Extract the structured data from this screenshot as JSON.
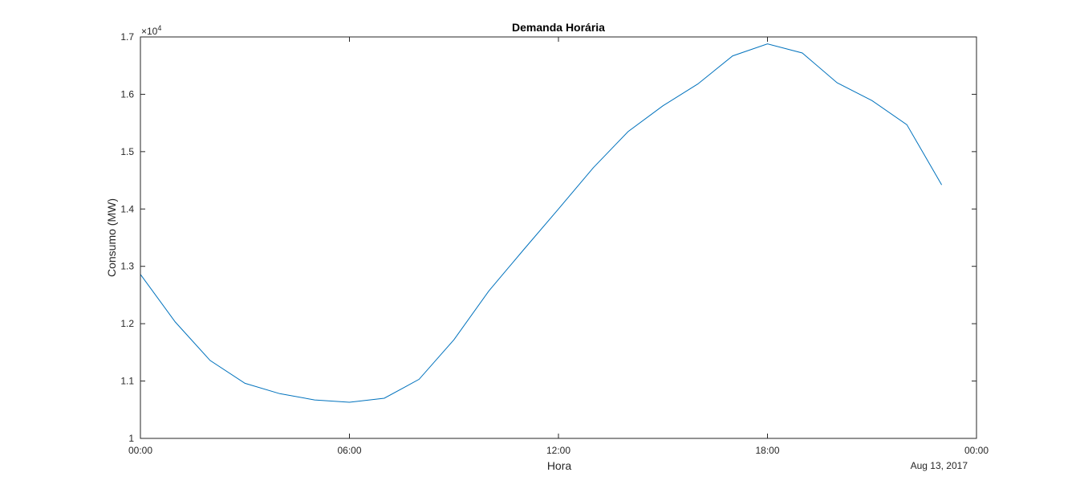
{
  "chart_data": {
    "type": "line",
    "title": "Demanda Horária",
    "xlabel": "Hora",
    "ylabel": "Consumo (MW)",
    "date_label": "Aug 13, 2017",
    "exponent_label": "×10",
    "exponent_power": "4",
    "x_ticks": [
      "00:00",
      "06:00",
      "12:00",
      "18:00",
      "00:00"
    ],
    "x_tick_hours": [
      0,
      6,
      12,
      18,
      24
    ],
    "xlim_hours": [
      0,
      24
    ],
    "y_ticks": [
      "1",
      "1.1",
      "1.2",
      "1.3",
      "1.4",
      "1.5",
      "1.6",
      "1.7"
    ],
    "y_tick_values": [
      10000,
      11000,
      12000,
      13000,
      14000,
      15000,
      16000,
      17000
    ],
    "ylim": [
      10000,
      17000
    ],
    "grid": false,
    "line_color": "#0072BD",
    "series": [
      {
        "x_hours": [
          0,
          1,
          2,
          3,
          4,
          5,
          6,
          7,
          8,
          9,
          10,
          11,
          12,
          13,
          14,
          15,
          16,
          17,
          18,
          19,
          20,
          21,
          22,
          23
        ],
        "values": [
          12860,
          12030,
          11360,
          10960,
          10780,
          10670,
          10630,
          10700,
          11030,
          11720,
          12570,
          13290,
          14000,
          14720,
          15350,
          15800,
          16180,
          16670,
          16880,
          16720,
          16200,
          15890,
          15470,
          14420
        ]
      }
    ]
  }
}
